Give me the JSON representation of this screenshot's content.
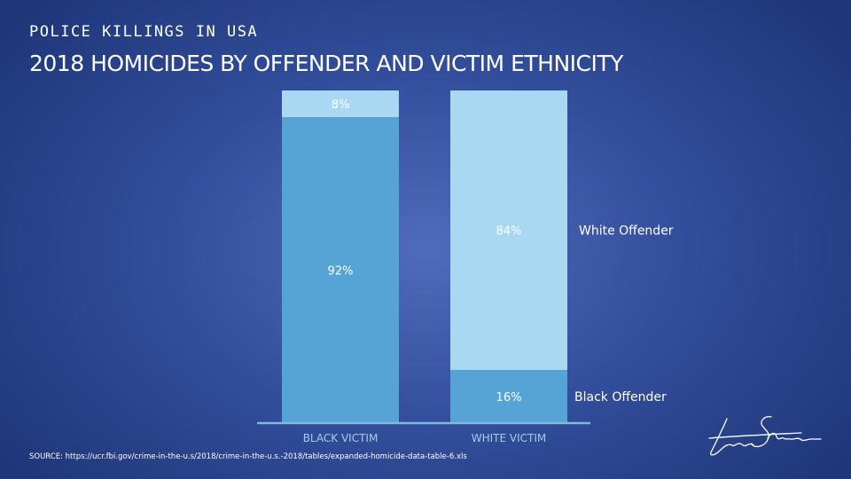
{
  "header": {
    "kicker": "POLICE KILLINGS IN USA",
    "title": "2018 HOMICIDES BY OFFENDER AND VICTIM ETHNICITY"
  },
  "chart_data": {
    "type": "bar",
    "stacked": true,
    "normalized": true,
    "categories": [
      "BLACK VICTIM",
      "WHITE VICTIM"
    ],
    "series": [
      {
        "name": "Black Offender",
        "values": [
          92,
          16
        ],
        "labels": [
          "92%",
          "16%"
        ],
        "color": "#56a3d6"
      },
      {
        "name": "White Offender",
        "values": [
          8,
          84
        ],
        "labels": [
          "8%",
          "84%"
        ],
        "color": "#a9d8f3"
      }
    ],
    "ylim": [
      0,
      100
    ],
    "grid": false,
    "legend": "direct labels right of second bar",
    "series_labels": [
      "White Offender",
      "Black Offender"
    ]
  },
  "footer": {
    "source": "SOURCE: https://ucr.fbi.gov/crime-in-the-u.s/2018/crime-in-the-u.s.-2018/tables/expanded-homicide-data-table-6.xls",
    "signature": "Lara Shirvinski"
  }
}
